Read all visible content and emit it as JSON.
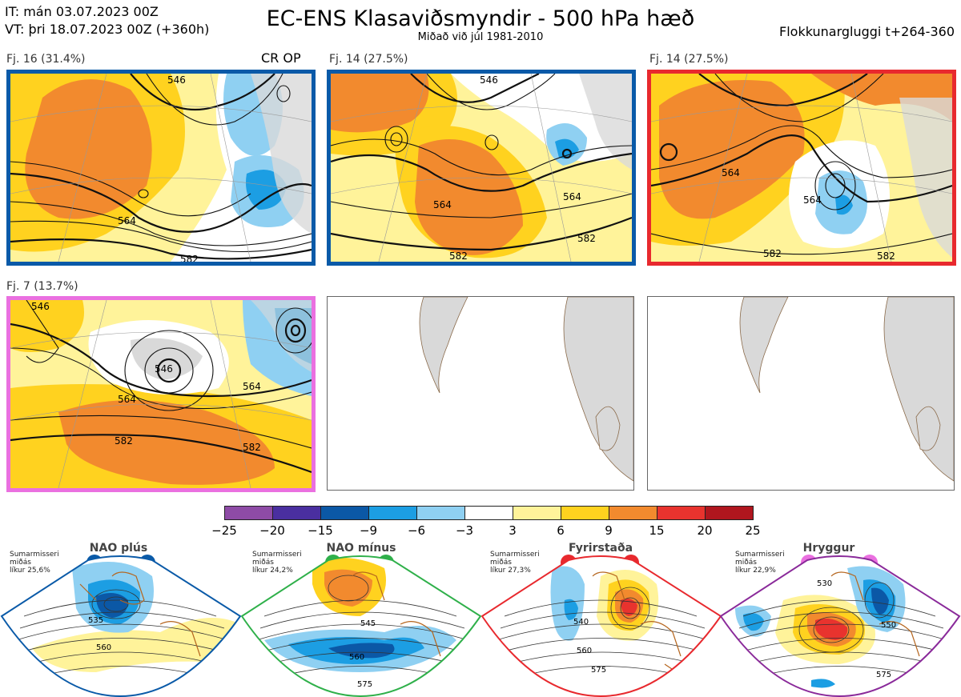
{
  "header": {
    "it_line": "IT: mán 03.07.2023 00Z",
    "vt_line": "VT: þri 18.07.2023 00Z  (+360h)",
    "title": "EC-ENS Klasaviðsmyndir - 500 hPa hæð",
    "subtitle": "Miðað við júl 1981-2010",
    "window_label": "Flokkunargluggi t+264-360"
  },
  "clusters": [
    {
      "label": "Fj. 16 (31.4%)",
      "border_color": "#0a5aa8",
      "extra_label": "CR OP",
      "contours": [
        "546",
        "564",
        "582"
      ]
    },
    {
      "label": "Fj. 14 (27.5%)",
      "border_color": "#0a5aa8",
      "contours": [
        "546",
        "564",
        "564",
        "582",
        "582"
      ]
    },
    {
      "label": "Fj. 14 (27.5%)",
      "border_color": "#e8292e",
      "contours": [
        "564",
        "564",
        "582",
        "582"
      ]
    },
    {
      "label": "Fj. 7 (13.7%)",
      "border_color": "#ea70e0",
      "contours": [
        "546",
        "546",
        "564",
        "564",
        "582",
        "582"
      ]
    }
  ],
  "colorbar": {
    "ticks": [
      "−25",
      "−20",
      "−15",
      "−9",
      "−6",
      "−3",
      "3",
      "6",
      "9",
      "15",
      "20",
      "25"
    ],
    "colors": [
      "#8e4ba6",
      "#4a2fa0",
      "#0b58a6",
      "#1c9ee3",
      "#8fd0f2",
      "#ffffff",
      "#fff39a",
      "#ffd21f",
      "#f28a2e",
      "#e8332e",
      "#b0161e"
    ]
  },
  "regimes": [
    {
      "name": "NAO plús",
      "note": [
        "Sumarmisseri",
        "miðás",
        "líkur 25,6%"
      ],
      "color": "#0a5aa8",
      "contours": [
        "535",
        "560"
      ]
    },
    {
      "name": "NAO mínus",
      "note": [
        "Sumarmisseri",
        "miðás",
        "líkur 24,2%"
      ],
      "color": "#2fb04a",
      "contours": [
        "545",
        "560",
        "575"
      ]
    },
    {
      "name": "Fyrirstaða",
      "note": [
        "Sumarmisseri",
        "miðás",
        "líkur 27,3%"
      ],
      "color": "#e8292e",
      "contours": [
        "540",
        "560",
        "575"
      ]
    },
    {
      "name": "Hryggur",
      "note": [
        "Sumarmisseri",
        "miðás",
        "líkur 22,9%"
      ],
      "color": "#8a2a9a",
      "dot_color": "#ea70e0",
      "contours": [
        "530",
        "550",
        "575"
      ]
    }
  ]
}
